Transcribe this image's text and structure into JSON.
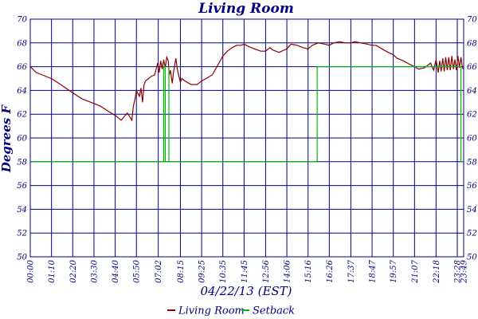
{
  "chart_data": {
    "type": "line",
    "title": "Living Room",
    "ylabel": "Degrees F",
    "xlabel": "04/22/13 (EST)",
    "ylim": [
      50,
      70
    ],
    "yticks": [
      50,
      52,
      54,
      56,
      58,
      60,
      62,
      64,
      66,
      68,
      70
    ],
    "xlim": [
      0,
      1429
    ],
    "xticks": [
      {
        "label": "00:00",
        "t": 0
      },
      {
        "label": "01:10",
        "t": 70
      },
      {
        "label": "02:20",
        "t": 140
      },
      {
        "label": "03:30",
        "t": 210
      },
      {
        "label": "04:40",
        "t": 280
      },
      {
        "label": "05:50",
        "t": 350
      },
      {
        "label": "07:02",
        "t": 422
      },
      {
        "label": "08:15",
        "t": 495
      },
      {
        "label": "09:25",
        "t": 565
      },
      {
        "label": "10:35",
        "t": 635
      },
      {
        "label": "11:45",
        "t": 705
      },
      {
        "label": "12:56",
        "t": 776
      },
      {
        "label": "14:06",
        "t": 846
      },
      {
        "label": "15:16",
        "t": 916
      },
      {
        "label": "16:26",
        "t": 986
      },
      {
        "label": "17:37",
        "t": 1057
      },
      {
        "label": "18:47",
        "t": 1127
      },
      {
        "label": "19:57",
        "t": 1197
      },
      {
        "label": "21:07",
        "t": 1267
      },
      {
        "label": "22:18",
        "t": 1338
      },
      {
        "label": "23:28",
        "t": 1408
      },
      {
        "label": "23:49",
        "t": 1429
      }
    ],
    "grid": true,
    "legend_position": "bottom",
    "series": [
      {
        "name": "Living Room",
        "color": "#8b0000",
        "x": [
          0,
          20,
          40,
          70,
          100,
          140,
          170,
          210,
          230,
          260,
          280,
          300,
          320,
          335,
          340,
          345,
          350,
          360,
          365,
          370,
          375,
          380,
          390,
          400,
          410,
          420,
          425,
          430,
          435,
          440,
          445,
          450,
          455,
          458,
          462,
          468,
          472,
          480,
          485,
          490,
          495,
          500,
          510,
          530,
          550,
          565,
          580,
          600,
          620,
          635,
          650,
          665,
          680,
          695,
          705,
          720,
          740,
          760,
          776,
          790,
          800,
          820,
          846,
          860,
          880,
          900,
          916,
          930,
          950,
          970,
          986,
          1000,
          1020,
          1040,
          1057,
          1070,
          1090,
          1110,
          1127,
          1140,
          1160,
          1180,
          1197,
          1210,
          1230,
          1250,
          1267,
          1280,
          1300,
          1320,
          1330,
          1338,
          1345,
          1350,
          1355,
          1360,
          1365,
          1370,
          1375,
          1380,
          1385,
          1390,
          1395,
          1400,
          1405,
          1410,
          1415,
          1420,
          1425,
          1429
        ],
        "values": [
          66.0,
          65.5,
          65.3,
          65.0,
          64.5,
          63.8,
          63.3,
          62.9,
          62.7,
          62.2,
          61.9,
          61.5,
          62.1,
          61.5,
          62.7,
          63.2,
          64.0,
          63.5,
          64.2,
          63.0,
          64.5,
          64.8,
          65.0,
          65.2,
          65.3,
          66.3,
          65.5,
          66.5,
          65.8,
          66.6,
          65.9,
          66.8,
          66.5,
          65.3,
          65.7,
          64.6,
          65.5,
          66.7,
          65.8,
          65.2,
          64.7,
          65.0,
          64.8,
          64.5,
          64.5,
          64.8,
          65.0,
          65.3,
          66.2,
          66.9,
          67.3,
          67.6,
          67.8,
          67.8,
          67.9,
          67.7,
          67.5,
          67.3,
          67.3,
          67.6,
          67.4,
          67.2,
          67.5,
          67.9,
          67.8,
          67.6,
          67.5,
          67.8,
          68.0,
          67.9,
          67.8,
          68.0,
          68.1,
          68.0,
          68.0,
          68.1,
          68.0,
          67.9,
          67.8,
          67.8,
          67.5,
          67.2,
          67.0,
          66.7,
          66.5,
          66.2,
          66.0,
          65.8,
          65.9,
          66.3,
          65.7,
          66.6,
          65.5,
          66.5,
          65.6,
          66.7,
          65.6,
          66.8,
          65.7,
          66.8,
          65.7,
          66.9,
          65.8,
          66.6,
          65.7,
          66.9,
          65.9,
          66.8,
          65.9,
          65.8
        ]
      },
      {
        "name": "Setback",
        "color": "#00bb00",
        "x": [
          0,
          440,
          440,
          445,
          445,
          457,
          457,
          457,
          457,
          455,
          455,
          946,
          946,
          1420,
          1420,
          1429
        ],
        "values": [
          58,
          58,
          66,
          66,
          58,
          58,
          66,
          66,
          58,
          58,
          58,
          58,
          66,
          66,
          58,
          58
        ]
      }
    ]
  }
}
